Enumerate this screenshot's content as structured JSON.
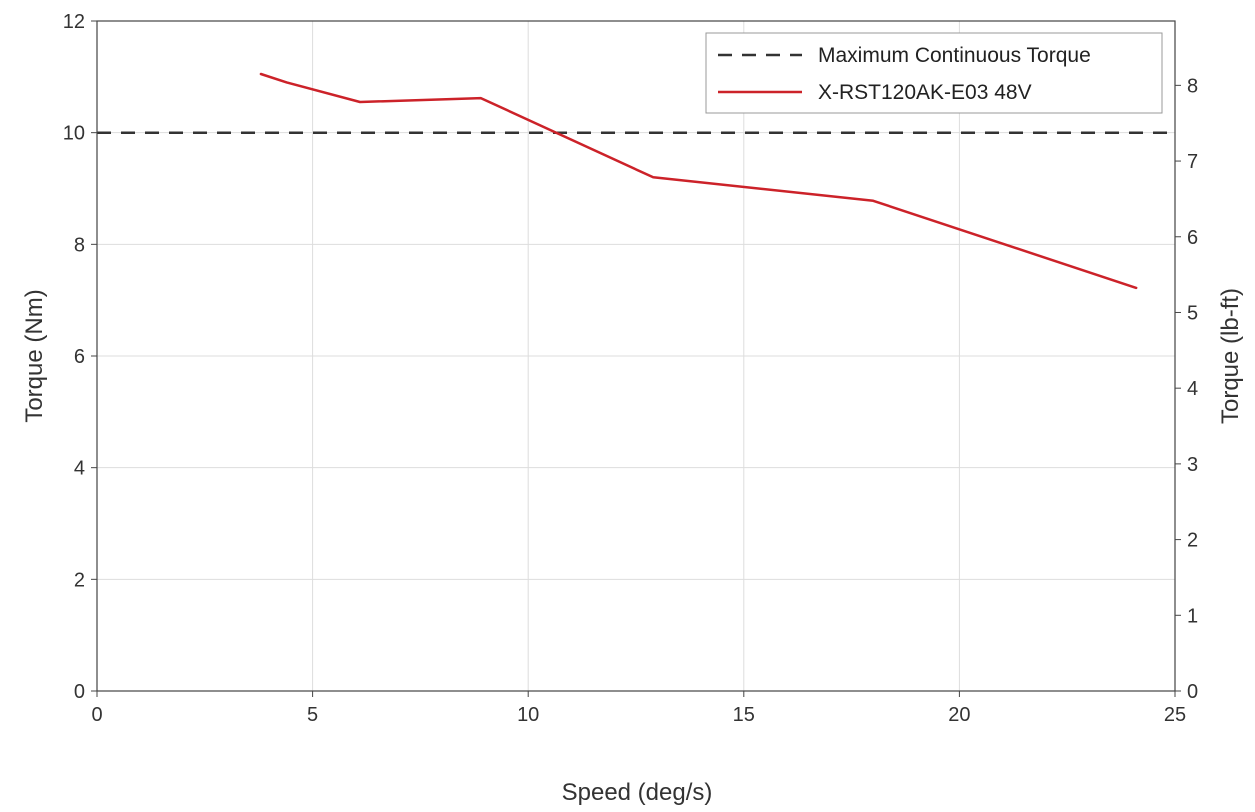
{
  "chart_data": {
    "type": "line",
    "title": "",
    "xlabel": "Speed (deg/s)",
    "ylabel": "Torque (Nm)",
    "ylabel_right": "Torque (lb-ft)",
    "xlim": [
      0,
      25
    ],
    "ylim": [
      0,
      12
    ],
    "ylim_right": [
      0,
      8.85
    ],
    "x_ticks": [
      0,
      5,
      10,
      15,
      20,
      25
    ],
    "y_ticks": [
      0,
      2,
      4,
      6,
      8,
      10,
      12
    ],
    "y_ticks_right": [
      0,
      1,
      2,
      3,
      4,
      5,
      6,
      7,
      8
    ],
    "grid": true,
    "legend_position": "top-right",
    "series": [
      {
        "name": "Maximum Continuous Torque",
        "style": "dashed",
        "color": "#333333",
        "x": [
          0,
          25
        ],
        "y": [
          10,
          10
        ]
      },
      {
        "name": "X-RST120AK-E03 48V",
        "style": "solid",
        "color": "#cc2229",
        "x": [
          3.8,
          4.4,
          6.1,
          8.9,
          12.9,
          18.0,
          24.1
        ],
        "y": [
          11.05,
          10.9,
          10.55,
          10.62,
          9.2,
          8.78,
          7.22
        ]
      }
    ]
  }
}
